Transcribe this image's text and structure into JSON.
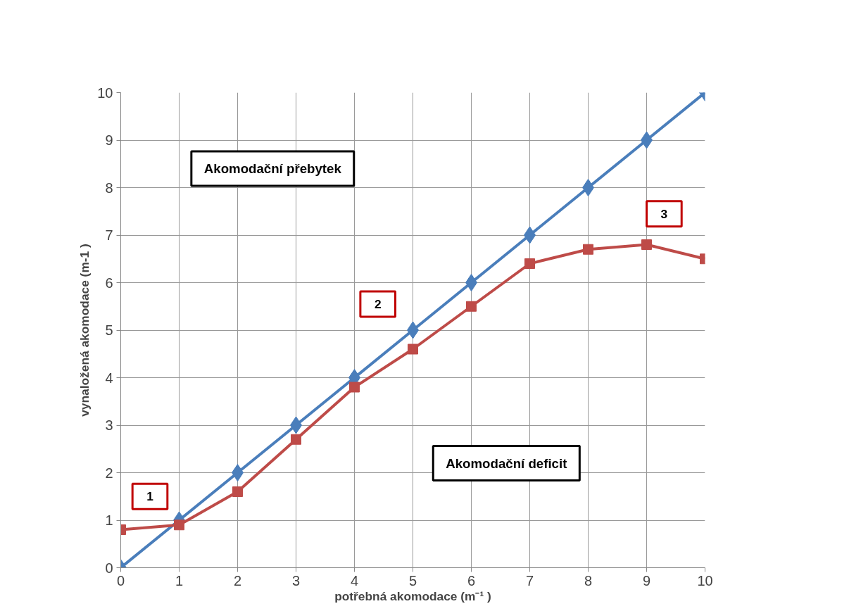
{
  "chart_data": {
    "type": "line",
    "xlabel": "potřebná akomodace (m⁻¹ )",
    "ylabel": "vynaložená akomodace (m-1 )",
    "x": [
      0,
      1,
      2,
      3,
      4,
      5,
      6,
      7,
      8,
      9,
      10
    ],
    "series": [
      {
        "color": "#4a7ebb",
        "values": [
          0,
          1,
          2,
          3,
          4,
          5,
          6,
          7,
          8,
          9,
          10
        ],
        "marker": "diamond"
      },
      {
        "color": "#be4b48",
        "values": [
          0.8,
          0.9,
          1.6,
          2.7,
          3.8,
          4.6,
          5.5,
          6.4,
          6.7,
          6.8,
          6.5
        ],
        "marker": "square"
      }
    ],
    "xlim": [
      0,
      10
    ],
    "ylim": [
      0,
      10
    ],
    "xticks": [
      0,
      1,
      2,
      3,
      4,
      5,
      6,
      7,
      8,
      9,
      10
    ],
    "yticks": [
      0,
      1,
      2,
      3,
      4,
      5,
      6,
      7,
      8,
      9,
      10
    ],
    "grid": true,
    "line_style": "solid",
    "annotations": [
      "Akomodační přebytek",
      "Akomodační deficit",
      "1",
      "2",
      "3"
    ]
  }
}
